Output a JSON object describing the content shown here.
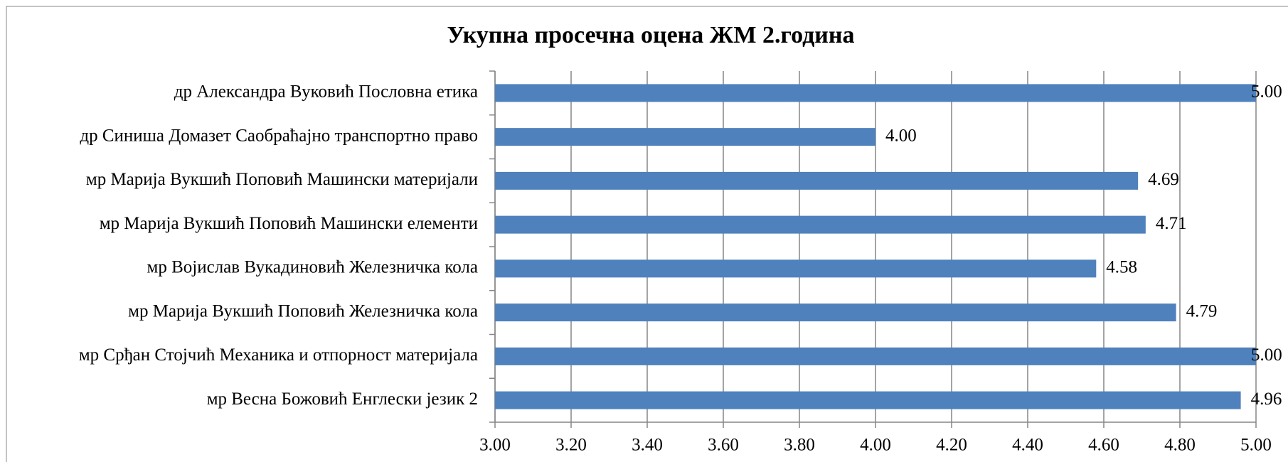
{
  "chart_data": {
    "type": "barh",
    "title": "Укупна просечна оцена ЖМ 2.година",
    "categories": [
      "др Александра Вуковић  Пословна етика",
      "др Синиша Домазет Саобраћајно транспортно право",
      "мр  Марија Вукшић  Поповић Машински материјали",
      "мр Марија Вукшић  Поповић Машински елементи",
      "мр Војислав Вукадиновић Железничка кола",
      "мр Марија Вукшић  Поповић Железничка кола",
      "мр Срђан Стојчић Механика и отпорност материјала",
      "мр Весна Божовић Енглески језик 2"
    ],
    "values": [
      5.0,
      4.0,
      4.69,
      4.71,
      4.58,
      4.79,
      5.0,
      4.96
    ],
    "value_labels": [
      "5.00",
      "4.00",
      "4.69",
      "4.71",
      "4.58",
      "4.79",
      "5.00",
      "4.96"
    ],
    "color": "#4f81bd",
    "xlim": [
      3,
      5
    ],
    "xticks": [
      {
        "value": 3,
        "label": "3.00"
      },
      {
        "value": 3.2,
        "label": "3.20"
      },
      {
        "value": 3.4,
        "label": "3.40"
      },
      {
        "value": 3.6,
        "label": "3.60"
      },
      {
        "value": 3.8,
        "label": "3.80"
      },
      {
        "value": 4,
        "label": "4.00"
      },
      {
        "value": 4.2,
        "label": "4.20"
      },
      {
        "value": 4.4,
        "label": "4.40"
      },
      {
        "value": 4.6,
        "label": "4.60"
      },
      {
        "value": 4.8,
        "label": "4.80"
      },
      {
        "value": 5,
        "label": "5.00"
      }
    ],
    "grid": true
  }
}
